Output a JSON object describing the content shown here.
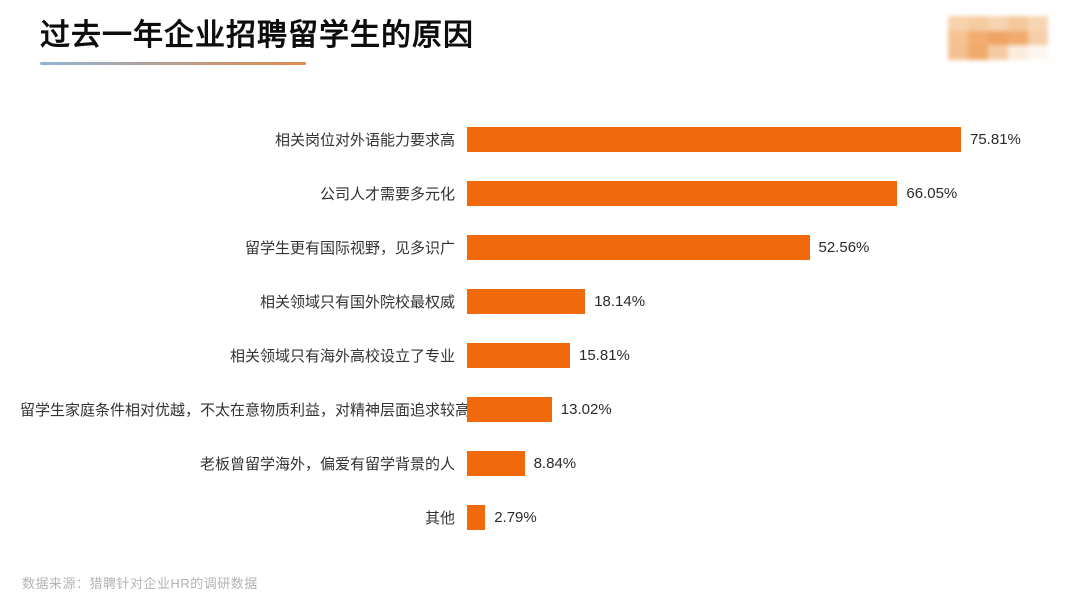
{
  "header": {
    "title": "过去一年企业招聘留学生的原因"
  },
  "footer": {
    "source": "数据来源：猎聘针对企业HR的调研数据"
  },
  "colors": {
    "bar": "#F0690A",
    "underline_left": "#8FB4D4",
    "underline_right": "#E08A4C",
    "category_text": "#333333",
    "value_text": "#2B2B2B",
    "footer_text": "#B3B3B3",
    "background": "#FFFFFF"
  },
  "logo": {
    "description": "blurred-brand-logo",
    "pixel_colors": [
      "#F7CFA8",
      "#F5C99E",
      "#F6D2AE",
      "#F4C697",
      "#F7D3B0",
      "#F5C08C",
      "#F2A869",
      "#EFA05B",
      "#F0A866",
      "#F6CCA4",
      "#F3BD8B",
      "#EFA761",
      "#F5C9A0",
      "#FBEBDD",
      "#FDF6EF"
    ]
  },
  "chart_data": {
    "type": "bar",
    "orientation": "horizontal",
    "title": "过去一年企业招聘留学生的原因",
    "xlabel": "",
    "ylabel": "",
    "xlim": [
      0,
      80
    ],
    "grid": false,
    "legend": false,
    "value_suffix": "%",
    "categories": [
      "相关岗位对外语能力要求高",
      "公司人才需要多元化",
      "留学生更有国际视野，见多识广",
      "相关领域只有国外院校最权威",
      "相关领域只有海外高校设立了专业",
      "留学生家庭条件相对优越，不太在意物质利益，对精神层面追求较高",
      "老板曾留学海外，偏爱有留学背景的人",
      "其他"
    ],
    "values": [
      75.81,
      66.05,
      52.56,
      18.14,
      15.81,
      13.02,
      8.84,
      2.79
    ]
  }
}
